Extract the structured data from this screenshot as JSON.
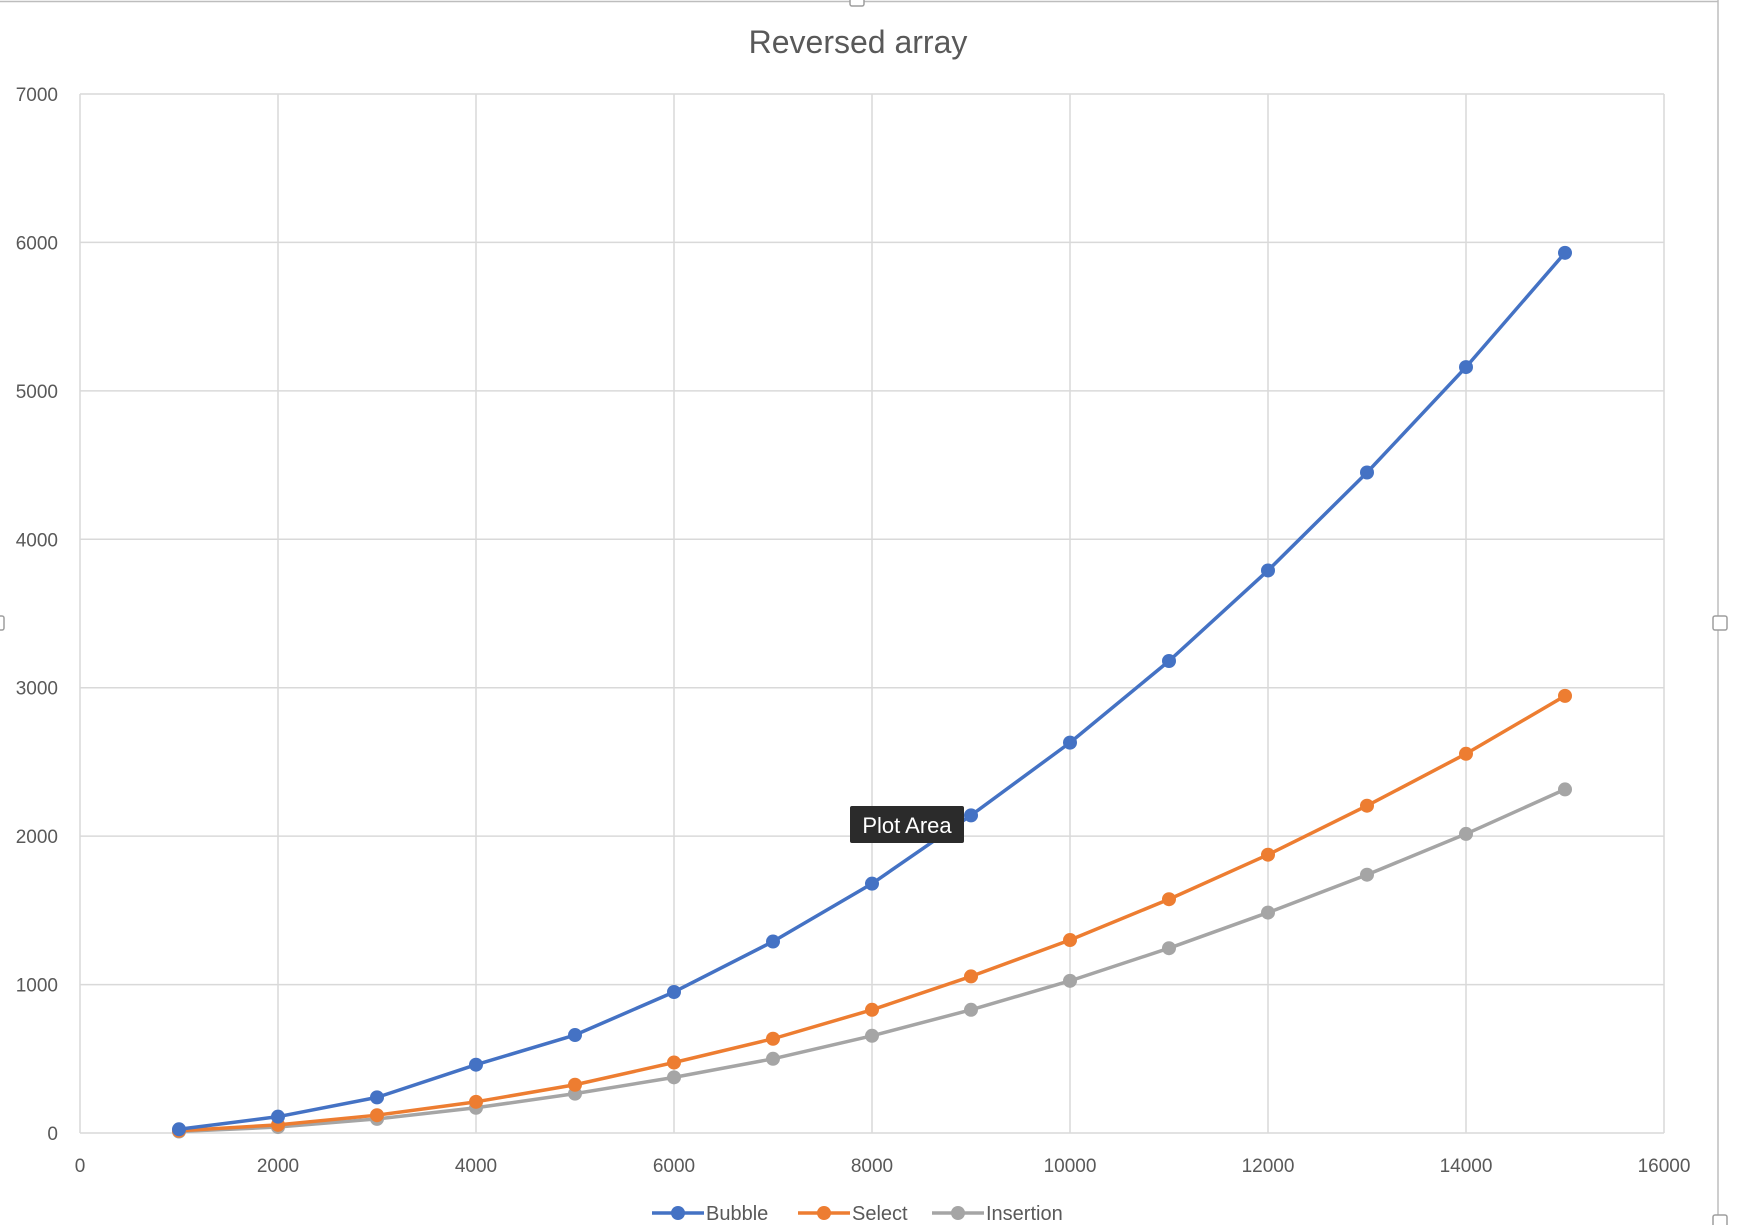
{
  "tooltip": "Plot Area",
  "colors": {
    "Bubble": "#4472c4",
    "Select": "#ed7d31",
    "Insertion": "#a5a5a5"
  },
  "chart_data": {
    "type": "scatter",
    "title": "Reversed array",
    "xlabel": "",
    "ylabel": "",
    "xlim": [
      0,
      16000
    ],
    "ylim": [
      0,
      7000
    ],
    "x_ticks": [
      0,
      2000,
      4000,
      6000,
      8000,
      10000,
      12000,
      14000,
      16000
    ],
    "y_ticks": [
      0,
      1000,
      2000,
      3000,
      4000,
      5000,
      6000,
      7000
    ],
    "grid": true,
    "legend_position": "bottom",
    "x": [
      1000,
      2000,
      3000,
      4000,
      5000,
      6000,
      7000,
      8000,
      9000,
      10000,
      11000,
      12000,
      13000,
      14000,
      15000
    ],
    "series": [
      {
        "name": "Bubble",
        "values": [
          25,
          110,
          240,
          460,
          660,
          950,
          1290,
          1680,
          2140,
          2630,
          3180,
          3790,
          4450,
          5160,
          5930
        ]
      },
      {
        "name": "Select",
        "values": [
          15,
          55,
          120,
          210,
          325,
          475,
          635,
          830,
          1055,
          1300,
          1575,
          1875,
          2205,
          2555,
          2945
        ]
      },
      {
        "name": "Insertion",
        "values": [
          10,
          40,
          95,
          170,
          265,
          375,
          500,
          655,
          830,
          1025,
          1245,
          1485,
          1740,
          2015,
          2315
        ]
      }
    ]
  }
}
